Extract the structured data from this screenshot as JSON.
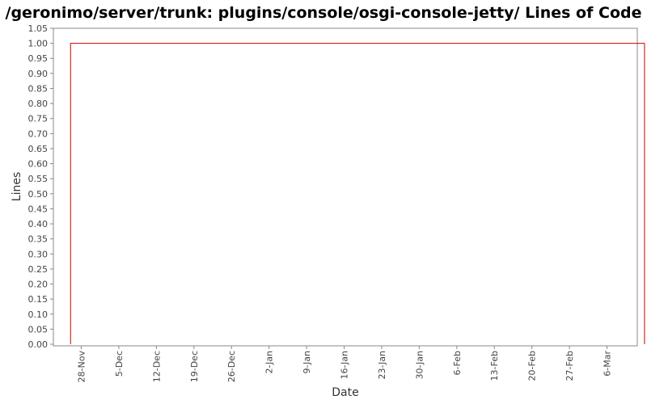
{
  "chart_data": {
    "type": "line",
    "title": "/geronimo/server/trunk: plugins/console/osgi-console-jetty/ Lines of Code",
    "xlabel": "Date",
    "ylabel": "Lines",
    "ylim": [
      0,
      1.05
    ],
    "yticks": [
      "0.00",
      "0.05",
      "0.10",
      "0.15",
      "0.20",
      "0.25",
      "0.30",
      "0.35",
      "0.40",
      "0.45",
      "0.50",
      "0.55",
      "0.60",
      "0.65",
      "0.70",
      "0.75",
      "0.80",
      "0.85",
      "0.90",
      "0.95",
      "1.00",
      "1.05"
    ],
    "xticks": [
      "28-Nov",
      "5-Dec",
      "12-Dec",
      "19-Dec",
      "26-Dec",
      "2-Jan",
      "9-Jan",
      "16-Jan",
      "23-Jan",
      "30-Jan",
      "6-Feb",
      "13-Feb",
      "20-Feb",
      "27-Feb",
      "6-Mar"
    ],
    "grid": false,
    "series": [
      {
        "color": "#cc0000",
        "x": [
          "26-Nov",
          "26-Nov",
          "13-Mar",
          "13-Mar"
        ],
        "values": [
          0,
          1,
          1,
          0
        ]
      }
    ]
  }
}
